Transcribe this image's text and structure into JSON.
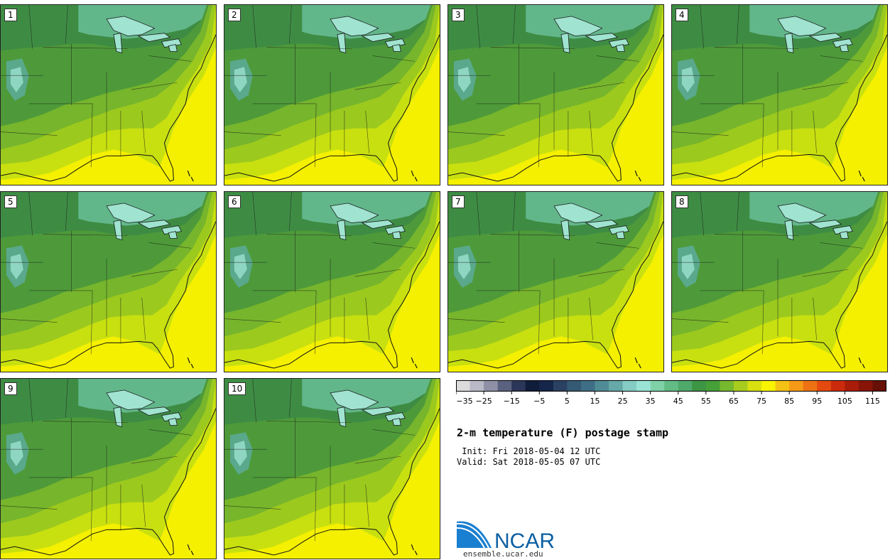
{
  "panels": [
    {
      "label": "1"
    },
    {
      "label": "2"
    },
    {
      "label": "3"
    },
    {
      "label": "4"
    },
    {
      "label": "5"
    },
    {
      "label": "6"
    },
    {
      "label": "7"
    },
    {
      "label": "8"
    },
    {
      "label": "9"
    },
    {
      "label": "10"
    }
  ],
  "colorbar": {
    "tick_labels": [
      "-35",
      "-25",
      "-15",
      "-5",
      "5",
      "15",
      "25",
      "35",
      "45",
      "55",
      "65",
      "75",
      "85",
      "95",
      "105",
      "115"
    ],
    "colors": [
      "#dcdcdc",
      "#b9b9c8",
      "#8f90a6",
      "#5a6280",
      "#2c3658",
      "#0f1c3a",
      "#16254a",
      "#2a4162",
      "#355a76",
      "#3f6f86",
      "#4f8c96",
      "#67a8a8",
      "#84ccc4",
      "#9ae4d6",
      "#7fd2a8",
      "#63bc85",
      "#4ea96b",
      "#3d9645",
      "#46a038",
      "#76b82e",
      "#a8cc1e",
      "#d8e010",
      "#f8f400",
      "#f4c214",
      "#f49a16",
      "#ee7214",
      "#e44a10",
      "#cc2a0c",
      "#aa1c0a",
      "#881408",
      "#661008"
    ]
  },
  "title": "2-m temperature (F) postage stamp",
  "init": " Init: Fri 2018-05-04 12 UTC",
  "valid": "Valid: Sat 2018-05-05 07 UTC",
  "logo": {
    "text": "NCAR",
    "url": "ensemble.ucar.edu",
    "color": "#0b5fa3"
  }
}
